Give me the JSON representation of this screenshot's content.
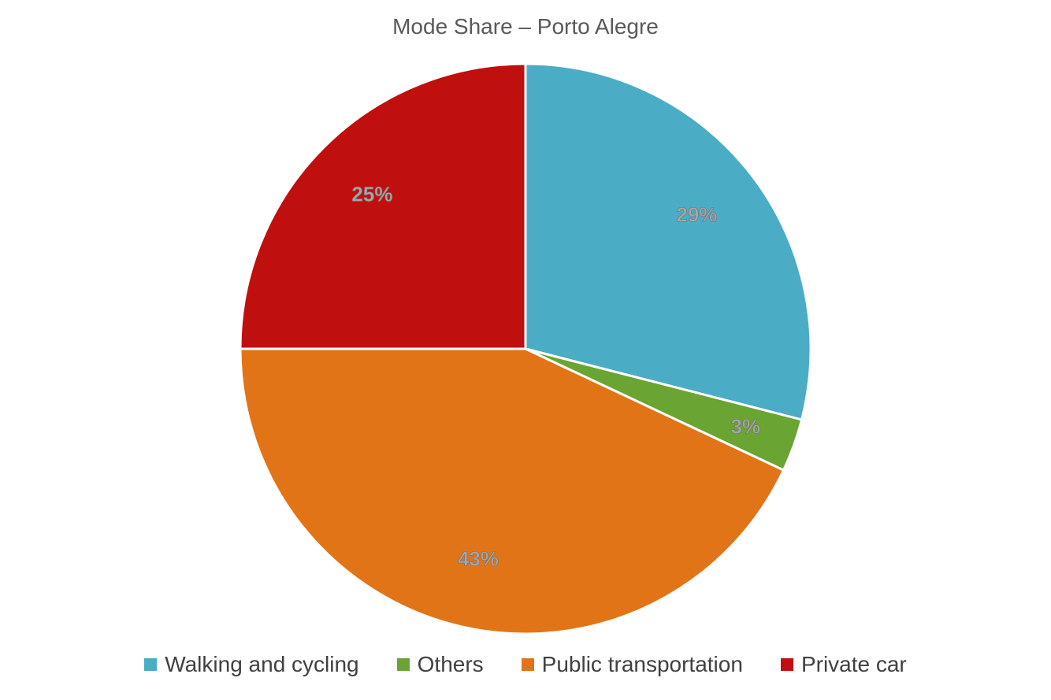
{
  "chart_data": {
    "type": "pie",
    "title": "Mode Share – Porto Alegre",
    "legend_position": "bottom",
    "slices": [
      {
        "name": "Walking and cycling",
        "value": 29,
        "label": "29%",
        "color": "#4bacc6"
      },
      {
        "name": "Others",
        "value": 3,
        "label": "3%",
        "color": "#6aa432"
      },
      {
        "name": "Public transportation",
        "value": 43,
        "label": "43%",
        "color": "#e27418"
      },
      {
        "name": "Private car",
        "value": 25,
        "label": "25%",
        "color": "#c00f0f"
      }
    ]
  }
}
